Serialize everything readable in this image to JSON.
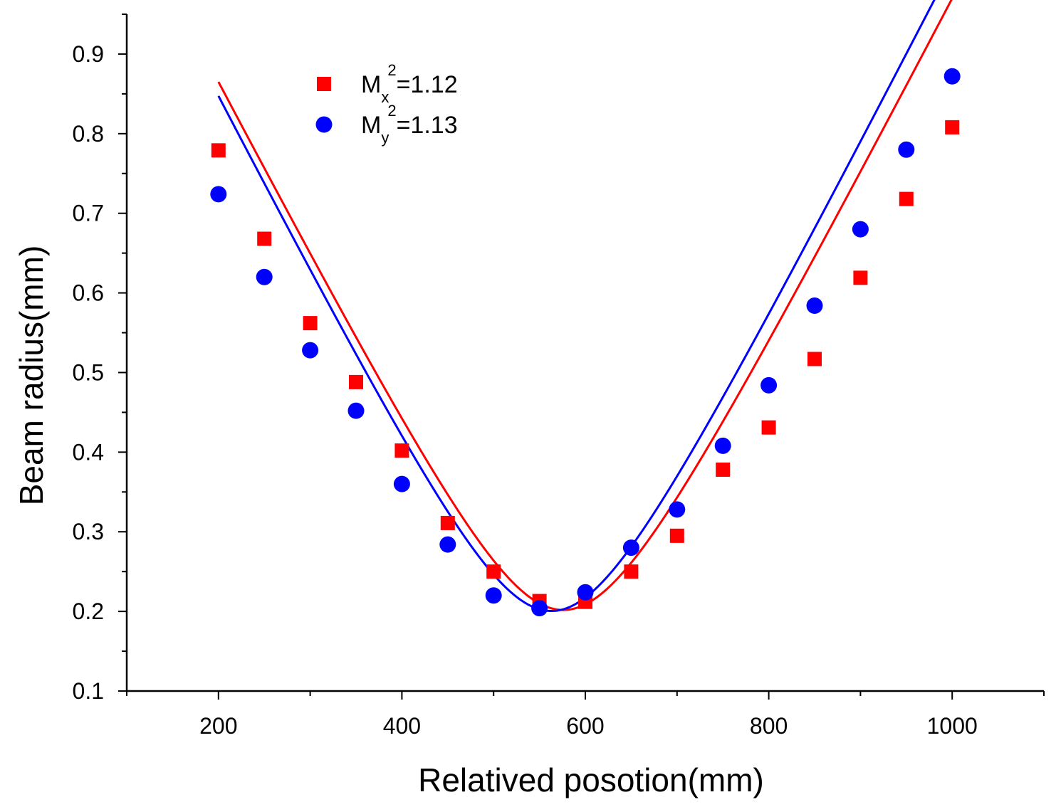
{
  "chart_data": {
    "type": "scatter",
    "xlabel": "Relatived posotion(mm)",
    "ylabel": "Beam radius(mm)",
    "xlim": [
      100,
      1100
    ],
    "ylim": [
      0.1,
      0.95
    ],
    "x_ticks": [
      200,
      400,
      600,
      800,
      1000
    ],
    "x_tick_labels": [
      "200",
      "400",
      "600",
      "800",
      "1000"
    ],
    "y_ticks": [
      0.1,
      0.2,
      0.3,
      0.4,
      0.5,
      0.6,
      0.7,
      0.8,
      0.9
    ],
    "y_tick_labels": [
      "0.1",
      "0.2",
      "0.3",
      "0.4",
      "0.5",
      "0.6",
      "0.7",
      "0.8",
      "0.9"
    ],
    "grid": false,
    "legend_position": "top-left",
    "x": [
      200,
      250,
      300,
      350,
      400,
      450,
      500,
      550,
      600,
      650,
      700,
      750,
      800,
      850,
      900,
      950,
      1000
    ],
    "series": [
      {
        "name": "Mx2=1.12",
        "legend": {
          "base": "M",
          "sub": "x",
          "sup": "2",
          "rest": "=1.12"
        },
        "color": "#ff0000",
        "marker": "square",
        "values": [
          0.779,
          0.668,
          0.562,
          0.488,
          0.402,
          0.311,
          0.25,
          0.213,
          0.212,
          0.25,
          0.295,
          0.378,
          0.431,
          0.517,
          0.619,
          0.718,
          0.808
        ],
        "fit": {
          "w0": 0.2018,
          "z0": 576,
          "zr": 90.2
        }
      },
      {
        "name": "My2=1.13",
        "legend": {
          "base": "M",
          "sub": "y",
          "sup": "2",
          "rest": "=1.13"
        },
        "color": "#0000ff",
        "marker": "circle",
        "values": [
          0.724,
          0.62,
          0.528,
          0.452,
          0.36,
          0.284,
          0.22,
          0.204,
          0.224,
          0.28,
          0.328,
          0.408,
          0.484,
          0.584,
          0.68,
          0.78,
          0.872
        ],
        "fit": {
          "w0": 0.2005,
          "z0": 563,
          "zr": 88.4
        }
      }
    ]
  }
}
